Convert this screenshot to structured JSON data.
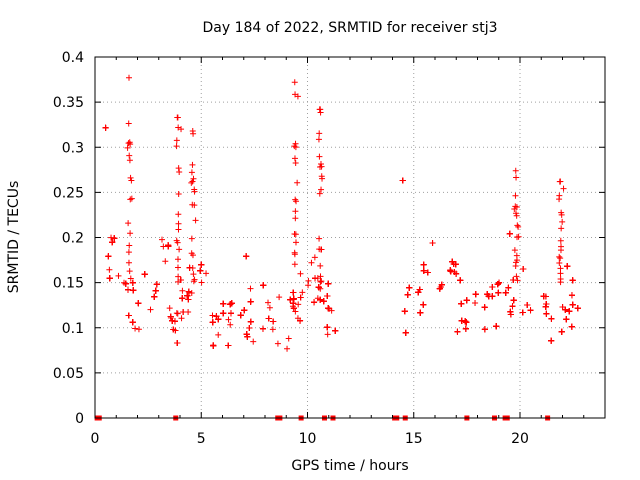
{
  "chart_data": {
    "type": "scatter",
    "title": "Day 184 of 2022, SRMTID for receiver stj3",
    "xlabel": "GPS time / hours",
    "ylabel": "SRMTID / TECUs",
    "xlim": [
      0,
      24
    ],
    "ylim": [
      0,
      0.4
    ],
    "x_ticks": [
      "0",
      "5",
      "10",
      "15",
      "20"
    ],
    "y_ticks": [
      "0",
      "0.05",
      "0.1",
      "0.15",
      "0.2",
      "0.25",
      "0.3",
      "0.35",
      "0.4"
    ],
    "grid": true,
    "marker": "+",
    "color": "#ff0000",
    "series_segments": [
      {
        "x_start": 0.0,
        "x_end": 11.4
      },
      {
        "x_start": 14.1,
        "x_end": 22.8
      }
    ],
    "peaks": [
      {
        "x": 1.6,
        "y": 0.377
      },
      {
        "x": 3.9,
        "y": 0.333
      },
      {
        "x": 4.6,
        "y": 0.318
      },
      {
        "x": 9.4,
        "y": 0.372
      },
      {
        "x": 10.6,
        "y": 0.342
      },
      {
        "x": 19.8,
        "y": 0.274
      },
      {
        "x": 21.9,
        "y": 0.262
      }
    ],
    "zero_points_x": [
      0.1,
      0.2,
      3.8,
      8.6,
      8.7,
      9.7,
      10.8,
      11.2,
      14.1,
      14.2,
      14.6,
      17.5,
      18.8,
      19.3,
      19.4,
      21.3
    ]
  }
}
